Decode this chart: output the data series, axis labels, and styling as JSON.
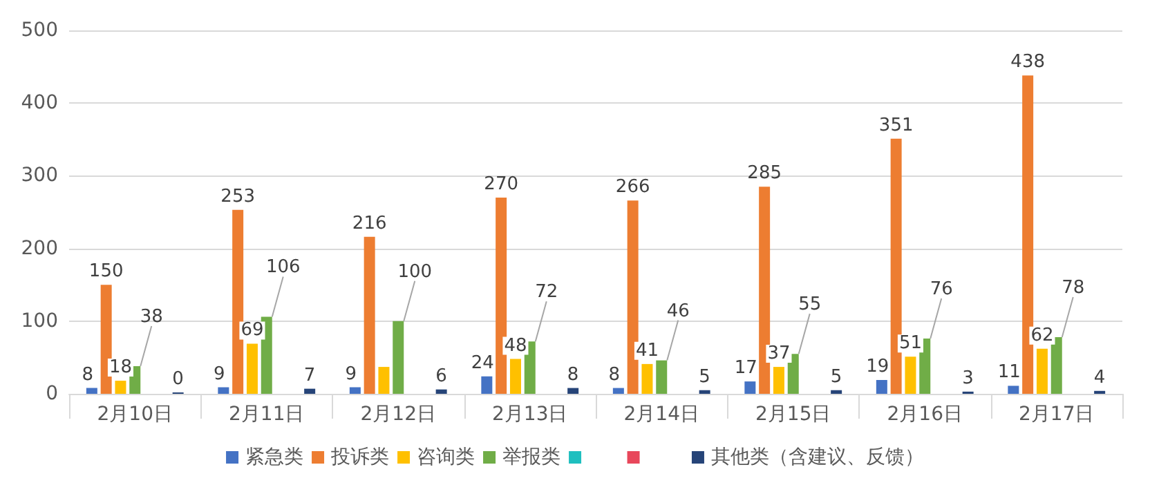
{
  "chart_data": {
    "type": "bar",
    "categories": [
      "2月10日",
      "2月11日",
      "2月12日",
      "2月13日",
      "2月14日",
      "2月15日",
      "2月16日",
      "2月17日"
    ],
    "series": [
      {
        "name": "紧急类",
        "color": "#4472c4",
        "values": [
          8,
          9,
          9,
          24,
          8,
          17,
          19,
          11
        ],
        "value_labels": [
          "8",
          "9",
          "9",
          "24",
          "8",
          "17",
          "19",
          "11"
        ]
      },
      {
        "name": "投诉类",
        "color": "#ed7d31",
        "values": [
          150,
          253,
          216,
          270,
          266,
          285,
          351,
          438
        ],
        "value_labels": [
          "150",
          "253",
          "216",
          "270",
          "266",
          "285",
          "351",
          "438"
        ]
      },
      {
        "name": "咨询类",
        "color": "#ffc000",
        "values": [
          18,
          69,
          37,
          48,
          41,
          37,
          51,
          62
        ],
        "value_labels": [
          "18",
          "69",
          null,
          "48",
          "41",
          "37",
          "51",
          "62"
        ]
      },
      {
        "name": "举报类",
        "color": "#70ad47",
        "values": [
          38,
          106,
          100,
          72,
          46,
          55,
          76,
          78
        ],
        "value_labels": [
          "38",
          "106",
          "100",
          "72",
          "46",
          "55",
          "76",
          "78"
        ]
      },
      {
        "color": "#1fbfbf",
        "values": [
          null,
          null,
          null,
          null,
          null,
          null,
          null,
          null
        ]
      },
      {
        "color": "#e8475b",
        "values": [
          null,
          null,
          null,
          null,
          null,
          null,
          null,
          null
        ]
      },
      {
        "name": "其他类（含建议、反馈）",
        "color": "#264478",
        "values": [
          0,
          7,
          6,
          8,
          5,
          5,
          3,
          4
        ],
        "value_labels": [
          "0",
          "7",
          "6",
          "8",
          "5",
          "5",
          "3",
          "4"
        ]
      }
    ],
    "ylim": [
      0,
      500
    ],
    "yticks": [
      0,
      100,
      200,
      300,
      400,
      500
    ],
    "grid": "y",
    "legend": "bottom"
  }
}
